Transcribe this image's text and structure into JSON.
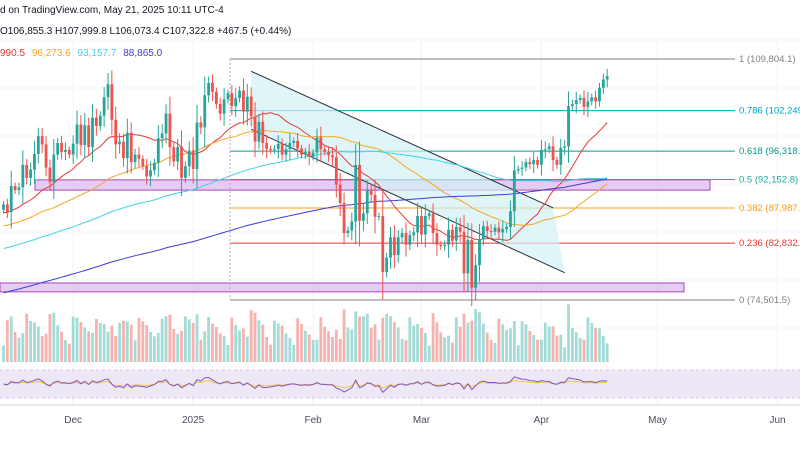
{
  "header": {
    "source_line": "d on TradingView.com, May 21, 2025 10:11 UTC-4",
    "ohlc_line": "O106,855.3  H107,999.8  L106,073.4  C107,322.8  +467.5 (+0.44%)",
    "ma_values": [
      {
        "text": "990.5",
        "color": "#e53935"
      },
      {
        "text": "96,273.6",
        "color": "#f5a623"
      },
      {
        "text": "93,157.7",
        "color": "#40d3e8"
      },
      {
        "text": "88,865.0",
        "color": "#3a3ad6"
      }
    ]
  },
  "fib_levels": [
    {
      "label": "1 (109,804.1)",
      "ratio": 1,
      "price": 109804.1,
      "color": "#808080"
    },
    {
      "label": "0.786 (102,249.",
      "ratio": 0.786,
      "price": 102249,
      "color": "#00a3bf"
    },
    {
      "label": "0.618 (96,318.5",
      "ratio": 0.618,
      "price": 96318.5,
      "color": "#089981"
    },
    {
      "label": "0.5 (92,152.8)",
      "ratio": 0.5,
      "price": 92152.8,
      "color": "#26a69a"
    },
    {
      "label": "0.382 (87,987.1",
      "ratio": 0.382,
      "price": 87987.1,
      "color": "#f59c1a"
    },
    {
      "label": "0.236 (82,832.9",
      "ratio": 0.236,
      "price": 82832.9,
      "color": "#e53935"
    },
    {
      "label": "0 (74,501.5)",
      "ratio": 0,
      "price": 74501.5,
      "color": "#808080"
    }
  ],
  "x_axis": {
    "ticks": [
      {
        "label": "Dec",
        "day": 18
      },
      {
        "label": "2025",
        "day": 49
      },
      {
        "label": "Feb",
        "day": 80
      },
      {
        "label": "Mar",
        "day": 108
      },
      {
        "label": "Apr",
        "day": 139
      },
      {
        "label": "May",
        "day": 169
      },
      {
        "label": "Jun",
        "day": 200
      }
    ]
  },
  "colors": {
    "up": "#26a69a",
    "down": "#ef5350",
    "up_volume": "#a3dbd6",
    "down_volume": "#f7b1ae",
    "zone_fill": "#e1c4f0",
    "zone_border": "#9c27b0",
    "channel_fill": "#d3f1f5",
    "rsi_band": "#ede7f6",
    "rsi_line": "#7e57c2",
    "rsi_ma": "#f5c542"
  },
  "chart_data": {
    "type": "candlestick",
    "timeframe": "daily",
    "y_unit": "USD",
    "anchor": {
      "start_day": 0,
      "start_label": "Nov 12"
    },
    "closes": [
      88500,
      87400,
      91200,
      90600,
      91000,
      94300,
      92400,
      93600,
      95900,
      98500,
      97300,
      93900,
      91800,
      95800,
      97500,
      96200,
      96500,
      95800,
      97400,
      100200,
      97200,
      100100,
      96900,
      101200,
      100000,
      101500,
      104200,
      106100,
      100900,
      97300,
      97700,
      95300,
      99000,
      94700,
      95800,
      95200,
      94100,
      92600,
      93500,
      94600,
      98200,
      98900,
      101800,
      96900,
      94800,
      96900,
      92400,
      94100,
      96400,
      93700,
      100500,
      99800,
      104500,
      106300,
      105000,
      103200,
      101800,
      103900,
      104800,
      102900,
      104100,
      105200,
      102100,
      104300,
      101400,
      97700,
      100600,
      97500,
      96600,
      96500,
      96600,
      97400,
      95800,
      96600,
      97500,
      97800,
      96700,
      95800,
      96200,
      95500,
      96100,
      98300,
      96600,
      96200,
      95700,
      95400,
      91400,
      88700,
      84300,
      84700,
      86000,
      94300,
      86100,
      87200,
      90600,
      89900,
      86700,
      86800,
      78600,
      80700,
      83700,
      81100,
      83700,
      84300,
      82600,
      84000,
      84400,
      86800,
      84100,
      86800,
      87200,
      84300,
      82600,
      82400,
      82600,
      84800,
      83200,
      85200,
      84500,
      78400,
      83300,
      76300,
      79600,
      83400,
      85300,
      84600,
      84500,
      85100,
      84400,
      84900,
      85200,
      87500,
      93500,
      93700,
      93900,
      94700,
      94400,
      95000,
      94300,
      96500,
      96600,
      97000,
      95000,
      94300,
      96800,
      97000,
      102900,
      103200,
      103800,
      104100,
      102800,
      103600,
      104200,
      103600,
      105600,
      106800,
      107300
    ],
    "overlays": [
      {
        "name": "MA 20",
        "color": "#e53935"
      },
      {
        "name": "MA 50",
        "color": "#f5a623"
      },
      {
        "name": "MA 100",
        "color": "#40d3e8"
      },
      {
        "name": "MA 200",
        "color": "#3a3ad6"
      }
    ],
    "fib_range": [
      74501.5,
      109804.1
    ],
    "support_zones": [
      {
        "low": 90600,
        "high": 92100
      },
      {
        "low": 75700,
        "high": 77000
      }
    ],
    "descending_channel": {
      "upper": [
        {
          "day": 64,
          "price": 108000
        },
        {
          "day": 142,
          "price": 88000
        }
      ],
      "lower": [
        {
          "day": 64,
          "price": 99500
        },
        {
          "day": 145,
          "price": 78500
        }
      ]
    },
    "x_ticks": [
      "Dec",
      "2025",
      "Feb",
      "Mar",
      "Apr",
      "May",
      "Jun"
    ],
    "grid": true,
    "panes": [
      "price",
      "volume",
      "RSI"
    ]
  }
}
